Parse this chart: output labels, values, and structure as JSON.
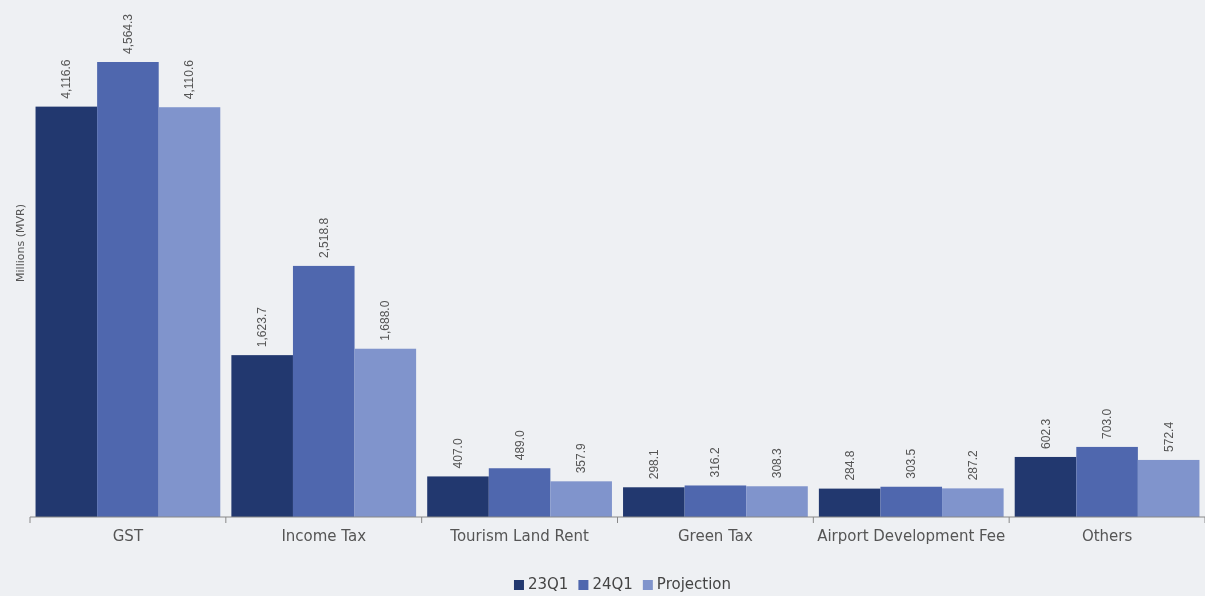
{
  "chart_data": {
    "type": "bar",
    "ylabel": "Millions (MVR)",
    "categories": [
      "GST",
      "Income Tax",
      "Tourism Land Rent",
      "Green Tax",
      "Airport Development Fee",
      "Others"
    ],
    "series": [
      {
        "name": "23Q1",
        "color": "#22386f",
        "values": [
          4116.6,
          1623.7,
          407.0,
          298.1,
          284.8,
          602.3
        ],
        "value_labels": [
          "4,116.6",
          "1,623.7",
          "407.0",
          "298.1",
          "284.8",
          "602.3"
        ]
      },
      {
        "name": "24Q1",
        "color": "#4f67ae",
        "values": [
          4564.3,
          2518.8,
          489.0,
          316.2,
          303.5,
          703.0
        ],
        "value_labels": [
          "4,564.3",
          "2,518.8",
          "489.0",
          "316.2",
          "303.5",
          "703.0"
        ]
      },
      {
        "name": "Projection",
        "color": "#8094cc",
        "values": [
          4110.6,
          1688.0,
          357.9,
          308.3,
          287.2,
          572.4
        ],
        "value_labels": [
          "4,110.6",
          "1,688.0",
          "357.9",
          "308.3",
          "287.2",
          "572.4"
        ]
      }
    ],
    "tick_labels": "x",
    "legend": "bottom"
  }
}
